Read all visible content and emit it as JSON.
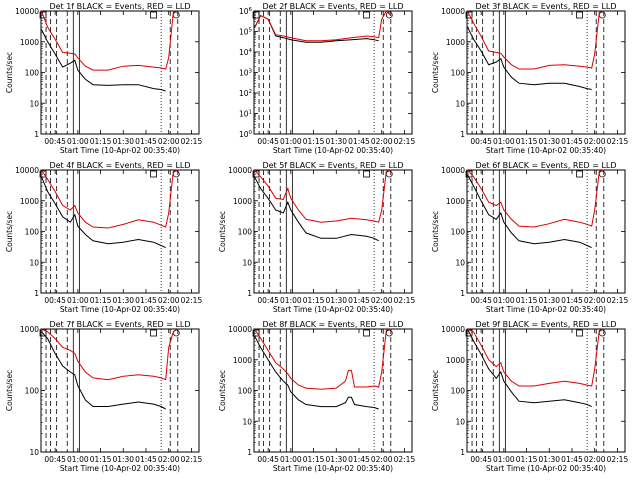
{
  "figure": {
    "x_label": "Start Time (10-Apr-02 00:35:40)",
    "y_label": "Counts/sec",
    "x_ticks": [
      "00:45",
      "01:00",
      "01:15",
      "01:30",
      "01:45",
      "02:00",
      "02:15"
    ],
    "y_ticks_default": [
      "1",
      "10",
      "100",
      "1000",
      "10000"
    ],
    "y_ticks_det2": [
      "10^0",
      "10^1",
      "10^2",
      "10^3",
      "10^4",
      "10^5",
      "10^6"
    ],
    "colors": {
      "events": "#000000",
      "lld": "#dd0000",
      "axes": "#000000"
    }
  },
  "chart_data": [
    {
      "type": "line",
      "title": "Det 1f BLACK = Events, RED = LLD",
      "xlabel": "Start Time (10-Apr-02 00:35:40)",
      "ylabel": "Counts/sec",
      "yscale": "log",
      "ylim": [
        1,
        10000
      ],
      "xlim": [
        "00:35:40",
        "02:20"
      ],
      "x": [
        "00:36",
        "00:40",
        "00:45",
        "00:50",
        "00:55",
        "00:58",
        "01:00",
        "01:05",
        "01:10",
        "01:20",
        "01:30",
        "01:40",
        "01:50",
        "01:55",
        "01:58",
        "02:00",
        "02:03",
        "02:06"
      ],
      "series": [
        {
          "name": "Events",
          "color": "#000000",
          "values": [
            2500,
            1000,
            400,
            150,
            200,
            250,
            120,
            60,
            40,
            38,
            40,
            40,
            30,
            28,
            25,
            null,
            null,
            null
          ]
        },
        {
          "name": "LLD",
          "color": "#dd0000",
          "values": [
            10000,
            3000,
            1200,
            450,
            420,
            400,
            300,
            160,
            120,
            120,
            160,
            170,
            150,
            140,
            130,
            300,
            9000,
            10000
          ]
        }
      ]
    },
    {
      "type": "line",
      "title": "Det 2f BLACK = Events, RED = LLD",
      "xlabel": "Start Time (10-Apr-02 00:35:40)",
      "ylabel": "",
      "yscale": "log",
      "ylim": [
        1,
        1000000
      ],
      "xlim": [
        "00:35:40",
        "02:20"
      ],
      "x": [
        "00:36",
        "00:40",
        "00:45",
        "00:50",
        "00:55",
        "01:00",
        "01:10",
        "01:20",
        "01:30",
        "01:40",
        "01:50",
        "01:55",
        "01:58",
        "02:00",
        "02:03",
        "02:06"
      ],
      "series": [
        {
          "name": "Events",
          "color": "#000000",
          "values": [
            150000,
            600000,
            400000,
            60000,
            50000,
            40000,
            30000,
            30000,
            35000,
            40000,
            45000,
            40000,
            35000,
            null,
            null,
            null
          ]
        },
        {
          "name": "LLD",
          "color": "#dd0000",
          "values": [
            150000,
            600000,
            400000,
            70000,
            60000,
            50000,
            35000,
            35000,
            40000,
            50000,
            60000,
            55000,
            50000,
            400000,
            1500000,
            600000
          ]
        }
      ]
    },
    {
      "type": "line",
      "title": "Det 3f BLACK = Events, RED = LLD",
      "xlabel": "Start Time (10-Apr-02 00:35:40)",
      "ylabel": "Counts/sec",
      "yscale": "log",
      "ylim": [
        1,
        10000
      ],
      "xlim": [
        "00:35:40",
        "02:20"
      ],
      "x": [
        "00:36",
        "00:40",
        "00:45",
        "00:50",
        "00:55",
        "00:58",
        "01:00",
        "01:05",
        "01:10",
        "01:20",
        "01:30",
        "01:40",
        "01:50",
        "01:55",
        "01:58",
        "02:00",
        "02:03",
        "02:06"
      ],
      "series": [
        {
          "name": "Events",
          "color": "#000000",
          "values": [
            3000,
            1200,
            500,
            180,
            220,
            280,
            150,
            70,
            45,
            40,
            45,
            45,
            35,
            30,
            28,
            null,
            null,
            null
          ]
        },
        {
          "name": "LLD",
          "color": "#dd0000",
          "values": [
            10000,
            4000,
            1500,
            500,
            450,
            420,
            320,
            180,
            130,
            130,
            170,
            180,
            160,
            150,
            140,
            400,
            9000,
            10000
          ]
        }
      ]
    },
    {
      "type": "line",
      "title": "Det 4f BLACK = Events, RED = LLD",
      "xlabel": "Start Time (10-Apr-02 00:35:40)",
      "ylabel": "Counts/sec",
      "yscale": "log",
      "ylim": [
        1,
        10000
      ],
      "xlim": [
        "00:35:40",
        "02:20"
      ],
      "x": [
        "00:36",
        "00:40",
        "00:45",
        "00:50",
        "00:55",
        "00:58",
        "01:00",
        "01:05",
        "01:10",
        "01:20",
        "01:30",
        "01:40",
        "01:50",
        "01:55",
        "01:58",
        "02:00",
        "02:03",
        "02:06"
      ],
      "series": [
        {
          "name": "Events",
          "color": "#000000",
          "values": [
            6000,
            2000,
            800,
            300,
            200,
            350,
            150,
            80,
            50,
            40,
            45,
            55,
            45,
            35,
            30,
            null,
            null,
            null
          ]
        },
        {
          "name": "LLD",
          "color": "#dd0000",
          "values": [
            10000,
            5000,
            2000,
            700,
            500,
            700,
            400,
            200,
            140,
            130,
            170,
            240,
            200,
            160,
            140,
            400,
            9000,
            10000
          ]
        }
      ]
    },
    {
      "type": "line",
      "title": "Det 5f BLACK = Events, RED = LLD",
      "xlabel": "Start Time (10-Apr-02 00:35:40)",
      "ylabel": "Counts/sec",
      "yscale": "log",
      "ylim": [
        1,
        10000
      ],
      "xlim": [
        "00:35:40",
        "02:20"
      ],
      "x": [
        "00:36",
        "00:40",
        "00:45",
        "00:50",
        "00:55",
        "00:58",
        "01:00",
        "01:05",
        "01:10",
        "01:20",
        "01:30",
        "01:40",
        "01:50",
        "01:55",
        "01:58",
        "02:00",
        "02:03",
        "02:06"
      ],
      "series": [
        {
          "name": "Events",
          "color": "#000000",
          "values": [
            6000,
            2500,
            1200,
            500,
            400,
            900,
            500,
            200,
            90,
            60,
            60,
            80,
            70,
            60,
            50,
            null,
            null,
            null
          ]
        },
        {
          "name": "LLD",
          "color": "#dd0000",
          "values": [
            10000,
            6000,
            3000,
            1200,
            1100,
            2500,
            1200,
            500,
            250,
            200,
            220,
            270,
            240,
            220,
            200,
            500,
            9000,
            10000
          ]
        }
      ]
    },
    {
      "type": "line",
      "title": "Det 6f BLACK = Events, RED = LLD",
      "xlabel": "Start Time (10-Apr-02 00:35:40)",
      "ylabel": "Counts/sec",
      "yscale": "log",
      "ylim": [
        1,
        10000
      ],
      "xlim": [
        "00:35:40",
        "02:20"
      ],
      "x": [
        "00:36",
        "00:40",
        "00:45",
        "00:50",
        "00:55",
        "00:58",
        "01:00",
        "01:05",
        "01:10",
        "01:20",
        "01:30",
        "01:40",
        "01:50",
        "01:55",
        "01:58",
        "02:00",
        "02:03",
        "02:06"
      ],
      "series": [
        {
          "name": "Events",
          "color": "#000000",
          "values": [
            7000,
            3000,
            1000,
            350,
            250,
            400,
            200,
            90,
            50,
            40,
            45,
            55,
            45,
            35,
            30,
            null,
            null,
            null
          ]
        },
        {
          "name": "LLD",
          "color": "#dd0000",
          "values": [
            10000,
            6000,
            2500,
            900,
            700,
            900,
            500,
            250,
            150,
            140,
            180,
            250,
            200,
            170,
            150,
            500,
            9000,
            10000
          ]
        }
      ]
    },
    {
      "type": "line",
      "title": "Det 7f BLACK = Events, RED = LLD",
      "xlabel": "Start Time (10-Apr-02 00:35:40)",
      "ylabel": "Counts/sec",
      "yscale": "log",
      "ylim": [
        10,
        1000
      ],
      "xlim": [
        "00:35:40",
        "02:20"
      ],
      "x": [
        "00:36",
        "00:40",
        "00:45",
        "00:50",
        "00:55",
        "00:58",
        "01:00",
        "01:05",
        "01:10",
        "01:20",
        "01:30",
        "01:40",
        "01:50",
        "01:55",
        "01:58",
        "02:00",
        "02:03",
        "02:06"
      ],
      "series": [
        {
          "name": "Events",
          "color": "#000000",
          "values": [
            900,
            700,
            400,
            250,
            200,
            180,
            120,
            70,
            55,
            55,
            60,
            65,
            60,
            55,
            50,
            null,
            null,
            null
          ]
        },
        {
          "name": "LLD",
          "color": "#dd0000",
          "values": [
            1000,
            900,
            700,
            500,
            450,
            400,
            300,
            200,
            160,
            150,
            170,
            180,
            170,
            160,
            150,
            500,
            900,
            1000
          ]
        }
      ]
    },
    {
      "type": "line",
      "title": "Det 8f BLACK = Events, RED = LLD",
      "xlabel": "Start Time (10-Apr-02 00:35:40)",
      "ylabel": "Counts/sec",
      "yscale": "log",
      "ylim": [
        1,
        10000
      ],
      "xlim": [
        "00:35:40",
        "02:20"
      ],
      "x": [
        "00:36",
        "00:40",
        "00:45",
        "00:50",
        "00:55",
        "00:58",
        "01:00",
        "01:05",
        "01:10",
        "01:20",
        "01:30",
        "01:36",
        "01:38",
        "01:40",
        "01:42",
        "01:50",
        "01:55",
        "01:58",
        "02:00",
        "02:03",
        "02:06"
      ],
      "series": [
        {
          "name": "Events",
          "color": "#000000",
          "values": [
            6000,
            2500,
            1000,
            400,
            200,
            150,
            90,
            50,
            35,
            30,
            30,
            40,
            60,
            60,
            35,
            30,
            28,
            25,
            null,
            null,
            null
          ]
        },
        {
          "name": "LLD",
          "color": "#dd0000",
          "values": [
            10000,
            5000,
            2000,
            800,
            500,
            350,
            250,
            150,
            120,
            110,
            120,
            200,
            450,
            450,
            130,
            130,
            140,
            130,
            400,
            9000,
            10000
          ]
        }
      ]
    },
    {
      "type": "line",
      "title": "Det 9f BLACK = Events, RED = LLD",
      "xlabel": "Start Time (10-Apr-02 00:35:40)",
      "ylabel": "Counts/sec",
      "yscale": "log",
      "ylim": [
        1,
        10000
      ],
      "xlim": [
        "00:35:40",
        "02:20"
      ],
      "x": [
        "00:36",
        "00:40",
        "00:45",
        "00:50",
        "00:55",
        "00:58",
        "01:00",
        "01:05",
        "01:10",
        "01:20",
        "01:30",
        "01:40",
        "01:50",
        "01:55",
        "01:58",
        "02:00",
        "02:03",
        "02:06"
      ],
      "series": [
        {
          "name": "Events",
          "color": "#000000",
          "values": [
            10000,
            4000,
            1500,
            500,
            250,
            400,
            200,
            90,
            45,
            40,
            45,
            50,
            40,
            35,
            30,
            null,
            null,
            null
          ]
        },
        {
          "name": "LLD",
          "color": "#dd0000",
          "values": [
            10000,
            8000,
            3000,
            1000,
            600,
            800,
            400,
            200,
            140,
            140,
            170,
            200,
            170,
            150,
            140,
            500,
            9000,
            10000
          ]
        }
      ]
    }
  ]
}
